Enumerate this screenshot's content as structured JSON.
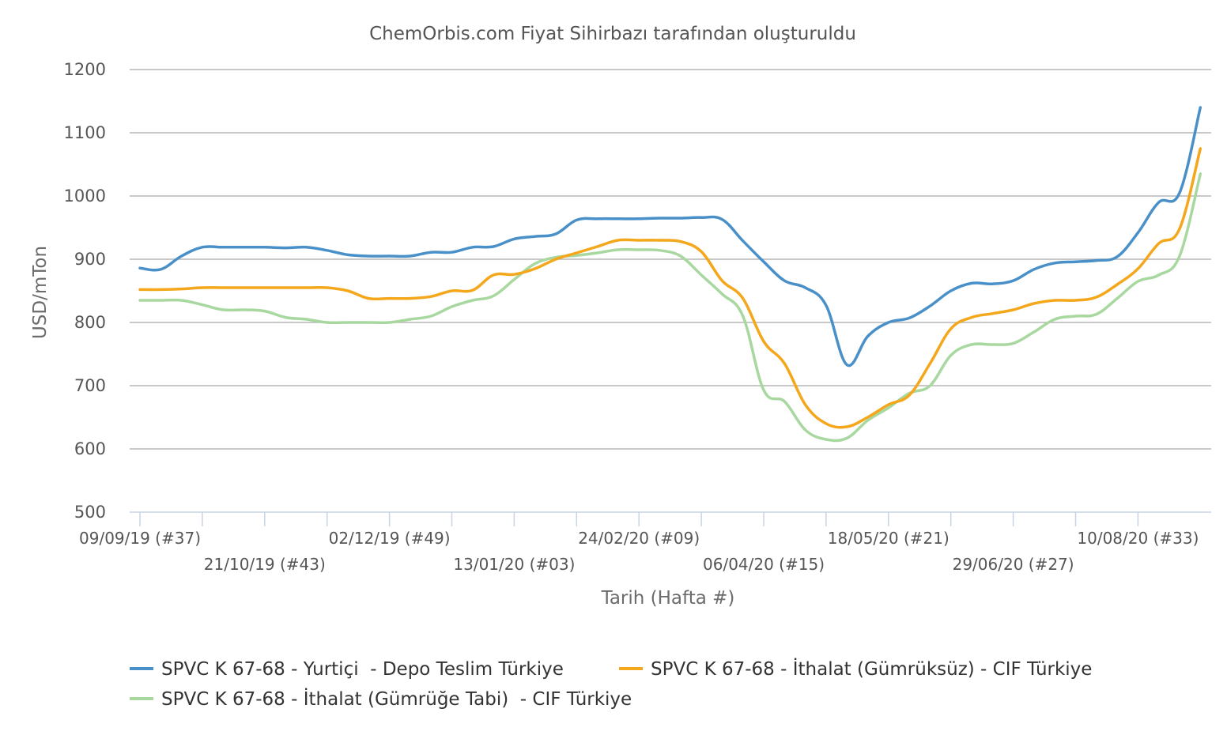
{
  "chart_data": {
    "type": "line",
    "title": "ChemOrbis.com Fiyat Sihirbazı tarafından oluşturuldu",
    "xlabel": "Tarih (Hafta #)",
    "ylabel": "USD/mTon",
    "ylim": [
      500,
      1200
    ],
    "y_ticks": [
      500,
      600,
      700,
      800,
      900,
      1000,
      1100,
      1200
    ],
    "grid": true,
    "legend_position": "bottom",
    "x_tick_labels": [
      {
        "week": 0,
        "label": "09/09/19 (#37)"
      },
      {
        "week": 6,
        "label": "21/10/19 (#43)"
      },
      {
        "week": 12,
        "label": "02/12/19 (#49)"
      },
      {
        "week": 18,
        "label": "13/01/20 (#03)"
      },
      {
        "week": 24,
        "label": "24/02/20 (#09)"
      },
      {
        "week": 30,
        "label": "06/04/20 (#15)"
      },
      {
        "week": 36,
        "label": "18/05/20 (#21)"
      },
      {
        "week": 42,
        "label": "29/06/20 (#27)"
      },
      {
        "week": 48,
        "label": "10/08/20 (#33)"
      }
    ],
    "x_domain": [
      0,
      51.5
    ],
    "series": [
      {
        "name": "SPVC K 67-68 - Yurtiçi  - Depo Teslim Türkiye",
        "color": "#4a90c8",
        "points": [
          [
            0,
            886
          ],
          [
            1,
            884
          ],
          [
            2,
            905
          ],
          [
            3,
            919
          ],
          [
            4,
            919
          ],
          [
            5,
            919
          ],
          [
            6,
            919
          ],
          [
            7,
            918
          ],
          [
            8,
            919
          ],
          [
            9,
            914
          ],
          [
            10,
            907
          ],
          [
            11,
            905
          ],
          [
            12,
            905
          ],
          [
            13,
            905
          ],
          [
            14,
            911
          ],
          [
            15,
            911
          ],
          [
            16,
            919
          ],
          [
            17,
            920
          ],
          [
            18,
            932
          ],
          [
            19,
            936
          ],
          [
            20,
            940
          ],
          [
            21,
            962
          ],
          [
            22,
            964
          ],
          [
            23,
            964
          ],
          [
            24,
            964
          ],
          [
            25,
            965
          ],
          [
            26,
            965
          ],
          [
            27,
            966
          ],
          [
            28,
            963
          ],
          [
            29,
            929
          ],
          [
            30,
            896
          ],
          [
            31,
            866
          ],
          [
            32,
            855
          ],
          [
            33,
            827
          ],
          [
            34,
            733
          ],
          [
            35,
            778
          ],
          [
            36,
            800
          ],
          [
            37,
            807
          ],
          [
            38,
            826
          ],
          [
            39,
            850
          ],
          [
            40,
            862
          ],
          [
            41,
            861
          ],
          [
            42,
            866
          ],
          [
            43,
            884
          ],
          [
            44,
            894
          ],
          [
            45,
            896
          ],
          [
            46,
            898
          ],
          [
            47,
            904
          ],
          [
            48,
            942
          ],
          [
            49,
            990
          ],
          [
            50,
            1005
          ],
          [
            51,
            1140
          ]
        ]
      },
      {
        "name": "SPVC K 67-68 - İthalat (Gümrüksüz) - CIF Türkiye",
        "color": "#f4a71b",
        "points": [
          [
            0,
            852
          ],
          [
            1,
            852
          ],
          [
            2,
            853
          ],
          [
            3,
            855
          ],
          [
            4,
            855
          ],
          [
            5,
            855
          ],
          [
            6,
            855
          ],
          [
            7,
            855
          ],
          [
            8,
            855
          ],
          [
            9,
            855
          ],
          [
            10,
            850
          ],
          [
            11,
            838
          ],
          [
            12,
            838
          ],
          [
            13,
            838
          ],
          [
            14,
            841
          ],
          [
            15,
            850
          ],
          [
            16,
            851
          ],
          [
            17,
            875
          ],
          [
            18,
            876
          ],
          [
            19,
            885
          ],
          [
            20,
            900
          ],
          [
            21,
            910
          ],
          [
            22,
            920
          ],
          [
            23,
            930
          ],
          [
            24,
            930
          ],
          [
            25,
            930
          ],
          [
            26,
            928
          ],
          [
            27,
            912
          ],
          [
            28,
            866
          ],
          [
            29,
            838
          ],
          [
            30,
            770
          ],
          [
            31,
            735
          ],
          [
            32,
            670
          ],
          [
            33,
            640
          ],
          [
            34,
            635
          ],
          [
            35,
            650
          ],
          [
            36,
            670
          ],
          [
            37,
            685
          ],
          [
            38,
            735
          ],
          [
            39,
            790
          ],
          [
            40,
            808
          ],
          [
            41,
            814
          ],
          [
            42,
            820
          ],
          [
            43,
            830
          ],
          [
            44,
            835
          ],
          [
            45,
            835
          ],
          [
            46,
            840
          ],
          [
            47,
            860
          ],
          [
            48,
            885
          ],
          [
            49,
            925
          ],
          [
            50,
            948
          ],
          [
            51,
            1075
          ]
        ]
      },
      {
        "name": "SPVC K 67-68 - İthalat (Gümrüğe Tabi)  - CIF Türkiye",
        "color": "#a8d8a0",
        "points": [
          [
            0,
            835
          ],
          [
            1,
            835
          ],
          [
            2,
            835
          ],
          [
            3,
            828
          ],
          [
            4,
            820
          ],
          [
            5,
            820
          ],
          [
            6,
            818
          ],
          [
            7,
            808
          ],
          [
            8,
            805
          ],
          [
            9,
            800
          ],
          [
            10,
            800
          ],
          [
            11,
            800
          ],
          [
            12,
            800
          ],
          [
            13,
            805
          ],
          [
            14,
            810
          ],
          [
            15,
            825
          ],
          [
            16,
            835
          ],
          [
            17,
            842
          ],
          [
            18,
            868
          ],
          [
            19,
            893
          ],
          [
            20,
            903
          ],
          [
            21,
            906
          ],
          [
            22,
            910
          ],
          [
            23,
            915
          ],
          [
            24,
            915
          ],
          [
            25,
            914
          ],
          [
            26,
            905
          ],
          [
            27,
            875
          ],
          [
            28,
            845
          ],
          [
            29,
            810
          ],
          [
            30,
            693
          ],
          [
            31,
            675
          ],
          [
            32,
            630
          ],
          [
            33,
            615
          ],
          [
            34,
            617
          ],
          [
            35,
            645
          ],
          [
            36,
            665
          ],
          [
            37,
            688
          ],
          [
            38,
            700
          ],
          [
            39,
            748
          ],
          [
            40,
            765
          ],
          [
            41,
            765
          ],
          [
            42,
            767
          ],
          [
            43,
            785
          ],
          [
            44,
            805
          ],
          [
            45,
            810
          ],
          [
            46,
            813
          ],
          [
            47,
            838
          ],
          [
            48,
            865
          ],
          [
            49,
            875
          ],
          [
            50,
            905
          ],
          [
            51,
            1035
          ]
        ]
      }
    ]
  }
}
